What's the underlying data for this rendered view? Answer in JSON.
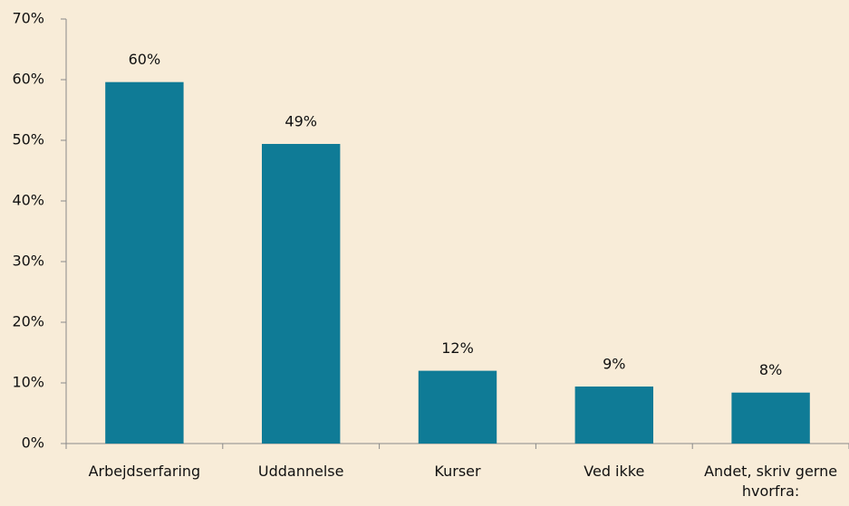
{
  "chart_data": {
    "type": "bar",
    "categories": [
      "Arbejdserfaring",
      "Uddannelse",
      "Kurser",
      "Ved ikke",
      "Andet, skriv gerne hvorfra:"
    ],
    "values": [
      59.6,
      49.4,
      12,
      9.4,
      8.4
    ],
    "value_labels": [
      "60%",
      "49%",
      "12%",
      "9%",
      "8%"
    ],
    "color": "#0f7b96",
    "ylim": [
      0,
      70
    ],
    "yticks": [
      {
        "value": 0,
        "label": "0%"
      },
      {
        "value": 10,
        "label": "10%"
      },
      {
        "value": 20,
        "label": "20%"
      },
      {
        "value": 30,
        "label": "30%"
      },
      {
        "value": 40,
        "label": "40%"
      },
      {
        "value": 50,
        "label": "50%"
      },
      {
        "value": 60,
        "label": "60%"
      },
      {
        "value": 70,
        "label": "70%"
      }
    ],
    "grid": false
  }
}
